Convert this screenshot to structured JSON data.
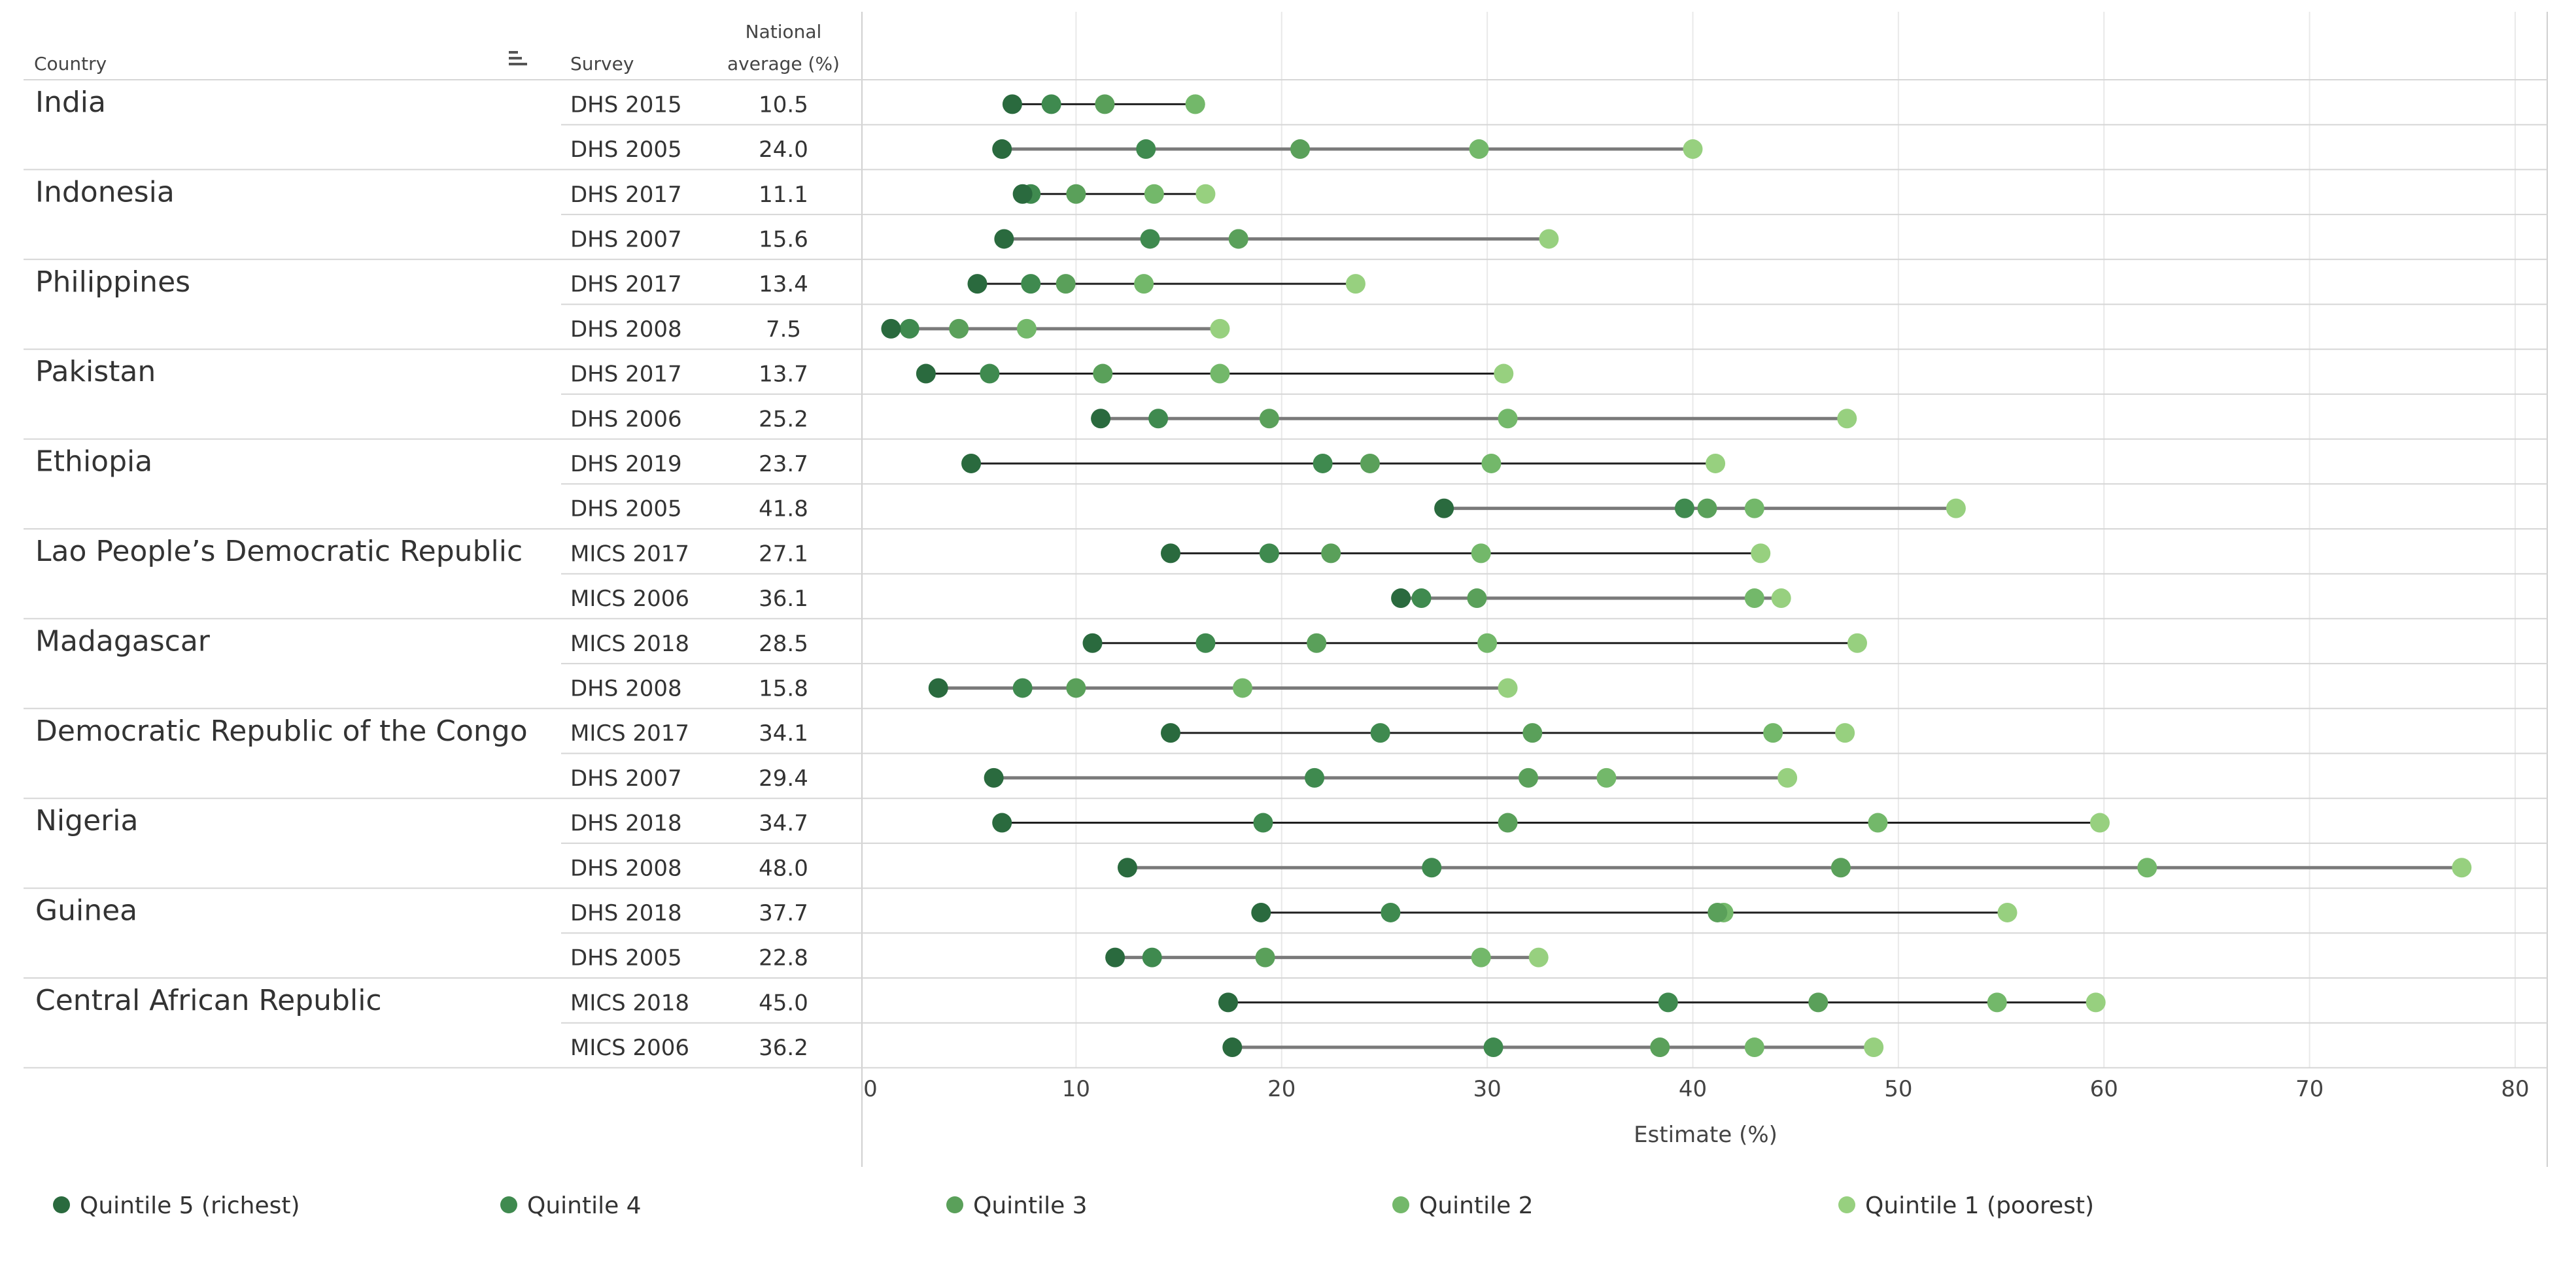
{
  "chart_data": {
    "type": "dot-range",
    "columns": {
      "country": "Country",
      "survey": "Survey",
      "national_average_line1": "National",
      "national_average_line2": "average (%)"
    },
    "xlabel": "Estimate (%)",
    "xlim": [
      0,
      80
    ],
    "xticks": [
      0,
      10,
      20,
      30,
      40,
      50,
      60,
      70,
      80
    ],
    "series_names": [
      "Quintile 5 (richest)",
      "Quintile 4",
      "Quintile 3",
      "Quintile 2",
      "Quintile 1 (poorest)"
    ],
    "series_colors": [
      "#2a6a3e",
      "#3f8a4f",
      "#5aa05a",
      "#73b86a",
      "#97d07f"
    ],
    "line_colors": {
      "dark": "#1f1f1f",
      "grey": "#7a7a7a"
    },
    "countries": [
      {
        "name": "India",
        "surveys": [
          {
            "survey": "DHS 2015",
            "avg": "10.5",
            "values": [
              6.9,
              8.8,
              11.4,
              15.8,
              15.8
            ],
            "line": "dark"
          },
          {
            "survey": "DHS 2005",
            "avg": "24.0",
            "values": [
              6.4,
              13.4,
              20.9,
              29.6,
              40.0
            ],
            "line": "grey"
          }
        ]
      },
      {
        "name": "Indonesia",
        "surveys": [
          {
            "survey": "DHS 2017",
            "avg": "11.1",
            "values": [
              7.4,
              7.8,
              10.0,
              13.8,
              16.3
            ],
            "line": "dark"
          },
          {
            "survey": "DHS 2007",
            "avg": "15.6",
            "values": [
              6.5,
              13.6,
              17.9,
              17.9,
              33.0
            ],
            "line": "grey"
          }
        ]
      },
      {
        "name": "Philippines",
        "surveys": [
          {
            "survey": "DHS 2017",
            "avg": "13.4",
            "values": [
              5.2,
              7.8,
              9.5,
              13.3,
              23.6
            ],
            "line": "dark"
          },
          {
            "survey": "DHS 2008",
            "avg": "7.5",
            "values": [
              1.0,
              1.9,
              4.3,
              7.6,
              17.0
            ],
            "line": "grey"
          }
        ]
      },
      {
        "name": "Pakistan",
        "surveys": [
          {
            "survey": "DHS 2017",
            "avg": "13.7",
            "values": [
              2.7,
              5.8,
              11.3,
              17.0,
              30.8
            ],
            "line": "dark"
          },
          {
            "survey": "DHS 2006",
            "avg": "25.2",
            "values": [
              11.2,
              14.0,
              19.4,
              31.0,
              47.5
            ],
            "line": "grey"
          }
        ]
      },
      {
        "name": "Ethiopia",
        "surveys": [
          {
            "survey": "DHS 2019",
            "avg": "23.7",
            "values": [
              4.9,
              22.0,
              24.3,
              30.2,
              41.1
            ],
            "line": "dark"
          },
          {
            "survey": "DHS 2005",
            "avg": "41.8",
            "values": [
              27.9,
              39.6,
              40.7,
              43.0,
              52.8
            ],
            "line": "grey"
          }
        ]
      },
      {
        "name": "Lao People’s Democratic Republic",
        "surveys": [
          {
            "survey": "MICS 2017",
            "avg": "27.1",
            "values": [
              14.6,
              19.4,
              22.4,
              29.7,
              43.3
            ],
            "line": "dark"
          },
          {
            "survey": "MICS 2006",
            "avg": "36.1",
            "values": [
              25.8,
              26.8,
              29.5,
              43.0,
              44.3
            ],
            "line": "grey"
          }
        ]
      },
      {
        "name": "Madagascar",
        "surveys": [
          {
            "survey": "MICS 2018",
            "avg": "28.5",
            "values": [
              10.8,
              16.3,
              21.7,
              30.0,
              48.0
            ],
            "line": "dark"
          },
          {
            "survey": "DHS 2008",
            "avg": "15.8",
            "values": [
              3.3,
              7.4,
              10.0,
              18.1,
              31.0
            ],
            "line": "grey"
          }
        ]
      },
      {
        "name": "Democratic Republic of the Congo",
        "surveys": [
          {
            "survey": "MICS 2017",
            "avg": "34.1",
            "values": [
              14.6,
              24.8,
              32.2,
              43.9,
              47.4
            ],
            "line": "dark"
          },
          {
            "survey": "DHS 2007",
            "avg": "29.4",
            "values": [
              6.0,
              21.6,
              32.0,
              35.8,
              44.6
            ],
            "line": "grey"
          }
        ]
      },
      {
        "name": "Nigeria",
        "surveys": [
          {
            "survey": "DHS 2018",
            "avg": "34.7",
            "values": [
              6.4,
              19.1,
              31.0,
              49.0,
              59.8
            ],
            "line": "dark"
          },
          {
            "survey": "DHS 2008",
            "avg": "48.0",
            "values": [
              12.5,
              27.3,
              47.2,
              62.1,
              77.4
            ],
            "line": "grey"
          }
        ]
      },
      {
        "name": "Guinea",
        "surveys": [
          {
            "survey": "DHS 2018",
            "avg": "37.7",
            "values": [
              19.0,
              25.3,
              41.2,
              41.5,
              55.3
            ],
            "line": "dark"
          },
          {
            "survey": "DHS 2005",
            "avg": "22.8",
            "values": [
              11.9,
              13.7,
              19.2,
              29.7,
              32.5
            ],
            "line": "grey"
          }
        ]
      },
      {
        "name": "Central African Republic",
        "surveys": [
          {
            "survey": "MICS 2018",
            "avg": "45.0",
            "values": [
              17.4,
              38.8,
              46.1,
              54.8,
              59.6
            ],
            "line": "dark"
          },
          {
            "survey": "MICS 2006",
            "avg": "36.2",
            "values": [
              17.6,
              30.3,
              38.4,
              43.0,
              48.8
            ],
            "line": "grey"
          }
        ]
      }
    ]
  }
}
